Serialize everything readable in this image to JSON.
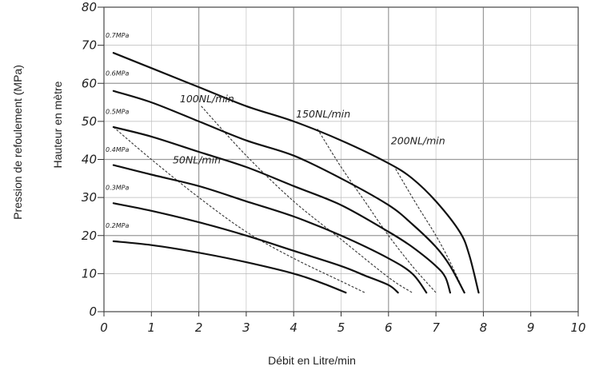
{
  "chart_data": {
    "type": "line",
    "title": "",
    "ylabel_outer": "Pression de refoulement (MPa)",
    "ylabel_inner": "Hauteur en mètre",
    "xlabel": "Débit en Litre/min",
    "xlim": [
      0,
      10
    ],
    "ylim": [
      0,
      80
    ],
    "x_ticks": [
      "0",
      "1",
      "2",
      "3",
      "4",
      "5",
      "6",
      "7",
      "8",
      "9",
      "10"
    ],
    "y_ticks": [
      "0",
      "10",
      "20",
      "30",
      "40",
      "50",
      "60",
      "70",
      "80"
    ],
    "grid": true,
    "pressure_series": [
      {
        "name": "0.7MPa",
        "label_y": 72,
        "x": [
          0.2,
          1,
          2,
          3,
          4,
          5,
          6,
          6.5,
          7,
          7.5,
          7.7,
          7.9
        ],
        "y": [
          68,
          64,
          59,
          54,
          50,
          45,
          39,
          35,
          29,
          21,
          15,
          5
        ]
      },
      {
        "name": "0.6MPa",
        "label_y": 62,
        "x": [
          0.2,
          1,
          2,
          3,
          4,
          5,
          6,
          6.5,
          7,
          7.3,
          7.6
        ],
        "y": [
          58,
          55,
          50,
          45,
          41,
          35,
          28,
          23,
          17,
          12,
          5
        ]
      },
      {
        "name": "0.5MPa",
        "label_y": 52,
        "x": [
          0.2,
          1,
          2,
          3,
          4,
          5,
          6,
          6.5,
          7,
          7.2,
          7.3
        ],
        "y": [
          48.5,
          46,
          42,
          38,
          33,
          28,
          21,
          17,
          12,
          9,
          5
        ]
      },
      {
        "name": "0.4MPa",
        "label_y": 42,
        "x": [
          0.2,
          1,
          2,
          3,
          4,
          5,
          6,
          6.5,
          6.8
        ],
        "y": [
          38.5,
          36,
          33,
          29,
          25,
          20,
          14,
          10,
          5
        ]
      },
      {
        "name": "0.3MPa",
        "label_y": 32,
        "x": [
          0.2,
          1,
          2,
          3,
          4,
          5,
          5.5,
          6,
          6.2
        ],
        "y": [
          28.5,
          26.5,
          23.5,
          20,
          16,
          12,
          9.5,
          7,
          5
        ]
      },
      {
        "name": "0.2MPa",
        "label_y": 22,
        "x": [
          0.2,
          1,
          2,
          3,
          4,
          4.6,
          5.1
        ],
        "y": [
          18.5,
          17.5,
          15.5,
          13,
          10,
          7.5,
          5
        ]
      }
    ],
    "airflow_series": [
      {
        "name": "50NL/min",
        "label_x": 1.45,
        "label_y": 39,
        "x": [
          0.2,
          1,
          2,
          3,
          4,
          5,
          5.5
        ],
        "y": [
          48.5,
          40,
          30,
          21,
          14,
          8,
          5
        ]
      },
      {
        "name": "100NL/min",
        "label_x": 1.6,
        "label_y": 55,
        "x": [
          2.05,
          3,
          4,
          5,
          6,
          6.5
        ],
        "y": [
          54,
          41,
          29,
          19,
          9,
          5
        ]
      },
      {
        "name": "150NL/min",
        "label_x": 4.05,
        "label_y": 51,
        "x": [
          4.5,
          5,
          5.5,
          6,
          6.5,
          7
        ],
        "y": [
          48,
          38,
          29,
          20,
          12,
          5
        ]
      },
      {
        "name": "200NL/min",
        "label_x": 6.05,
        "label_y": 44,
        "x": [
          6.15,
          6.6,
          7,
          7.3,
          7.6
        ],
        "y": [
          37.5,
          28,
          20,
          13,
          5
        ]
      }
    ]
  }
}
